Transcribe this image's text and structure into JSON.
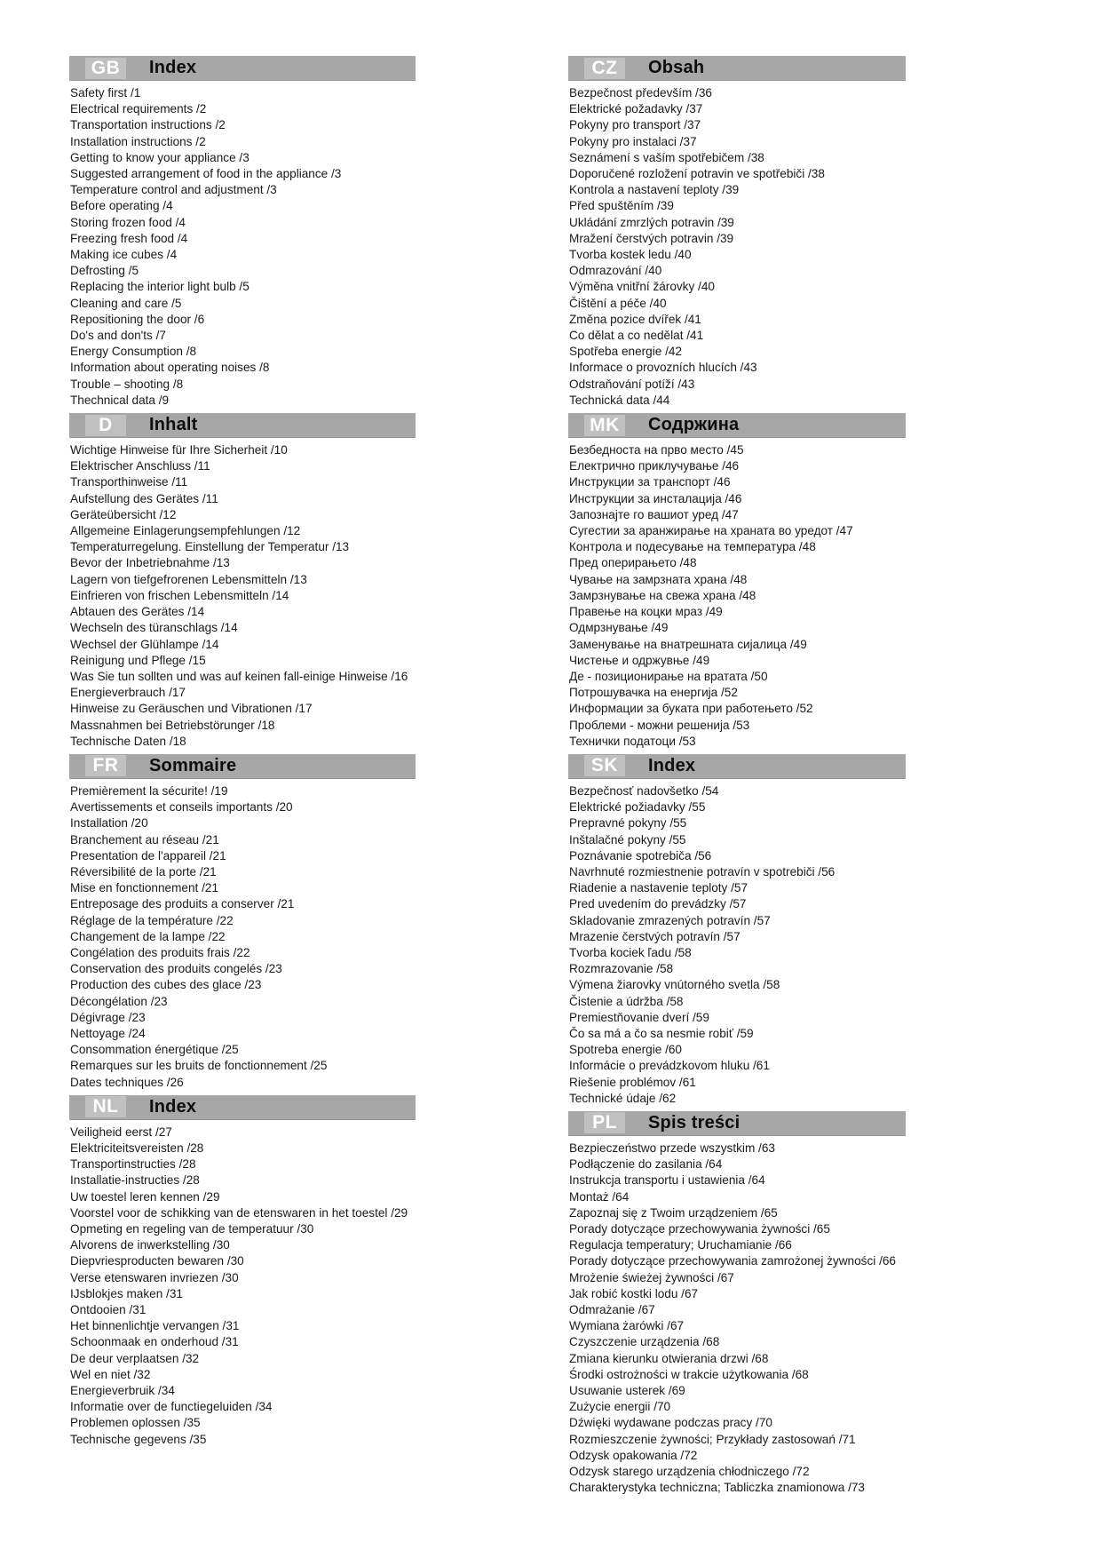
{
  "page": {
    "colors": {
      "header_bar": "#a7a7a7",
      "header_code_bg": "#c0c0c0",
      "header_code_text": "#ffffff",
      "header_title_text": "#0d0d0d",
      "body_text": "#1a1a1a",
      "page_bg": "#ffffff"
    },
    "columns": [
      {
        "name": "left",
        "sections": [
          {
            "code": "GB",
            "title": "Index",
            "items": [
              "Safety first /1",
              "Electrical requirements /2",
              "Transportation instructions /2",
              "Installation instructions /2",
              "Getting to know your appliance /3",
              "Suggested arrangement of food in the appliance /3",
              "Temperature control and adjustment /3",
              "Before operating /4",
              "Storing frozen food /4",
              "Freezing fresh food /4",
              "Making ice cubes /4",
              "Defrosting /5",
              "Replacing the interior light bulb /5",
              "Cleaning and care /5",
              "Repositioning the door /6",
              "Do's and don'ts /7",
              "Energy Consumption /8",
              "Information about operating noises /8",
              "Trouble – shooting /8",
              "Thechnical data /9"
            ]
          },
          {
            "code": "D",
            "title": "Inhalt",
            "items": [
              "Wichtige Hinweise für Ihre Sicherheit /10",
              "Elektrischer Anschluss /11",
              "Transporthinweise /11",
              "Aufstellung des Gerätes /11",
              "Geräteübersicht /12",
              "Allgemeine Einlagerungsempfehlungen /12",
              "Temperaturregelung. Einstellung der Temperatur /13",
              "Bevor der Inbetriebnahme /13",
              "Lagern von tiefgefrorenen Lebensmitteln /13",
              "Einfrieren von frischen Lebensmitteln /14",
              "Abtauen des Gerätes /14",
              "Wechseln des türanschlags /14",
              "Wechsel der Glühlampe /14",
              "Reinigung und Pflege /15",
              "Was Sie tun sollten und was auf keinen fall-einige Hinweise /16",
              "Energieverbrauch /17",
              "Hinweise zu Geräuschen und Vibrationen /17",
              "Massnahmen bei Betriebstörunger /18",
              "Technische Daten /18"
            ]
          },
          {
            "code": "FR",
            "title": "Sommaire",
            "items": [
              "Premièrement la sécurite! /19",
              "Avertissements et conseils importants /20",
              "Installation /20",
              "Branchement au réseau /21",
              "Presentation de l'appareil /21",
              "Réversibilité de la porte /21",
              "Mise en fonctionnement /21",
              "Entreposage des produits a conserver /21",
              "Réglage de la température /22",
              "Changement de la lampe /22",
              "Congélation des produits frais /22",
              "Conservation des produits congelés /23",
              "Production des cubes des glace /23",
              "Décongélation /23",
              "Dégivrage /23",
              "Nettoyage /24",
              "Consommation énergétique /25",
              "Remarques sur les bruits de fonctionnement /25",
              "Dates techniques /26"
            ]
          },
          {
            "code": "NL",
            "title": "Index",
            "items": [
              "Veiligheid eerst /27",
              "Elektriciteitsvereisten /28",
              "Transportinstructies /28",
              "Installatie-instructies /28",
              "Uw toestel leren kennen /29",
              "Voorstel voor de schikking van de etenswaren in het toestel /29",
              "Opmeting en regeling van de temperatuur /30",
              "Alvorens de inwerkstelling /30",
              "Diepvriesproducten bewaren /30",
              "Verse etenswaren invriezen /30",
              "IJsblokjes maken /31",
              "Ontdooien /31",
              "Het binnenlichtje vervangen /31",
              "Schoonmaak en onderhoud /31",
              "De deur verplaatsen /32",
              "Wel en niet /32",
              "Energieverbruik /34",
              "Informatie over de functiegeluiden /34",
              "Problemen oplossen /35",
              "Technische gegevens /35"
            ]
          }
        ]
      },
      {
        "name": "right",
        "sections": [
          {
            "code": "CZ",
            "title": "Obsah",
            "items": [
              "Bezpečnost především /36",
              "Elektrické požadavky /37",
              "Pokyny pro transport /37",
              "Pokyny pro instalaci /37",
              "Seznámení s vaším spotřebičem /38",
              "Doporučené rozložení potravin ve spotřebiči /38",
              "Kontrola a nastavení teploty /39",
              "Před spuštěním /39",
              "Ukládání zmrzlých potravin /39",
              "Mražení čerstvých potravin /39",
              "Tvorba kostek ledu /40",
              "Odmrazování /40",
              "Výměna vnitřní žárovky /40",
              "Čištění a péče /40",
              "Změna pozice dvířek /41",
              "Co dělat a co nedělat /41",
              "Spotřeba energie /42",
              "Informace o provozních hlucích /43",
              "Odstraňování potíží /43",
              "Technická data /44"
            ]
          },
          {
            "code": "MK",
            "title": "Содржина",
            "items": [
              "Безбедноста на прво место /45",
              "Електрично приклучување /46",
              "Инструкции за транспорт /46",
              "Инструкции за инсталација /46",
              "Запознајте го вашиот уред /47",
              "Сугестии за аранжирање на храната во уредот /47",
              "Контрола и подесување на температура /48",
              "Пред оперирањето /48",
              "Чување на замрзната храна /48",
              "Замрзнување на свежа храна /48",
              "Правење на коцки мраз /49",
              "Одмрзнување /49",
              "Заменување на внатрешната сијалица /49",
              "Чистење и одржувње /49",
              "Де - позиционирање на вратата /50",
              "Потрошувачка на енергија /52",
              "Информации за буката при работењето /52",
              "Проблеми - можни решенија /53",
              "Технички податоци /53"
            ]
          },
          {
            "code": "SK",
            "title": "Index",
            "items": [
              "Bezpečnosť nadovšetko /54",
              "Elektrické požiadavky /55",
              "Prepravné pokyny /55",
              "Inštalačné pokyny /55",
              "Poznávanie spotrebiča /56",
              "Navrhnuté rozmiestnenie potravín v spotrebiči /56",
              "Riadenie a nastavenie teploty /57",
              "Pred uvedením do prevádzky /57",
              "Skladovanie zmrazených potravín /57",
              "Mrazenie čerstvých potravín /57",
              "Tvorba kociek ľadu /58",
              "Rozmrazovanie /58",
              "Výmena žiarovky vnútorného svetla /58",
              "Čistenie a údržba /58",
              "Premiestňovanie dverí /59",
              "Čo sa má a čo sa nesmie robiť /59",
              "Spotreba energie /60",
              "Informácie o prevádzkovom hluku /61",
              "Riešenie problémov /61",
              "Technické údaje /62"
            ]
          },
          {
            "code": "PL",
            "title": "Spis treści",
            "items": [
              "Bezpieczeństwo przede wszystkim /63",
              "Podłączenie do zasilania /64",
              "Instrukcja transportu i ustawienia /64",
              "Montaż /64",
              "Zapoznaj się z Twoim urządzeniem /65",
              "Porady dotyczące przechowywania żywności /65",
              "Regulacja temperatury; Uruchamianie /66",
              "Porady dotyczące przechowywania zamrożonej żywności /66",
              "Mrożenie świeżej żywności /67",
              "Jak robić kostki lodu /67",
              "Odmrażanie /67",
              "Wymiana żarówki /67",
              "Czyszczenie urządzenia /68",
              "Zmiana kierunku otwierania drzwi /68",
              "Środki ostrożności w trakcie użytkowania /68",
              "Usuwanie usterek /69",
              "Zużycie energii /70",
              "Dźwięki wydawane podczas pracy /70",
              "Rozmieszczenie żywności; Przykłady zastosowań /71",
              "Odzysk opakowania /72",
              "Odzysk starego urządzenia chłodniczego /72",
              "Charakterystyka techniczna; Tabliczka znamionowa /73"
            ]
          }
        ]
      }
    ]
  }
}
